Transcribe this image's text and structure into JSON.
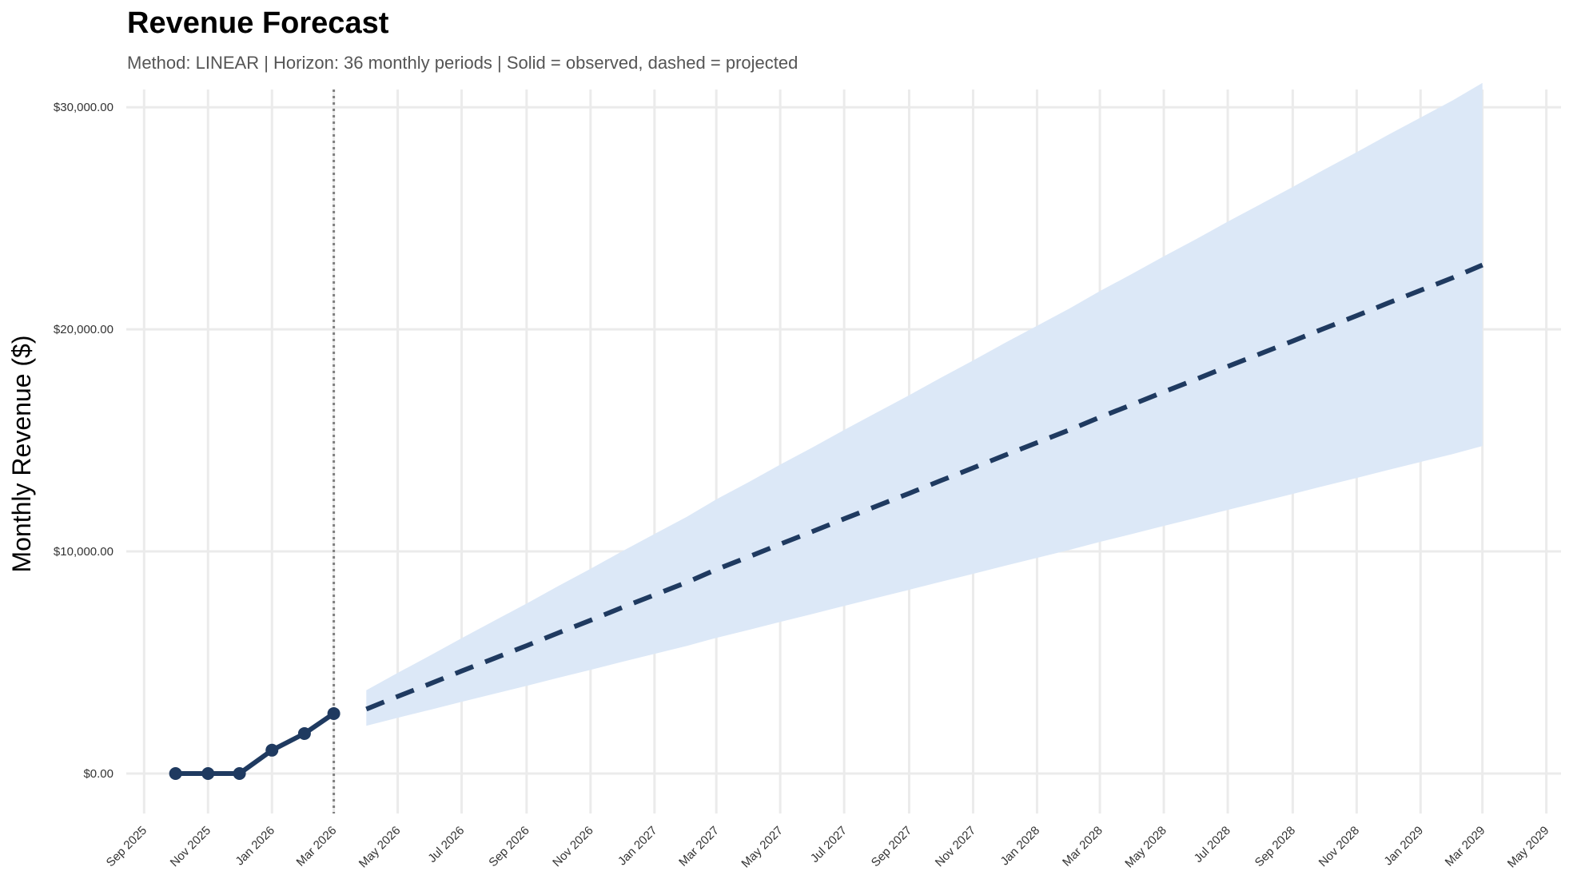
{
  "chart_data": {
    "type": "line",
    "title": "Revenue Forecast",
    "subtitle": "Method: LINEAR | Horizon: 36 monthly periods | Solid = observed, dashed = projected",
    "xlabel": "",
    "ylabel": "Monthly Revenue ($)",
    "ylim": [
      -1800,
      30800
    ],
    "xlim": [
      "2025-08-15",
      "2029-05-15"
    ],
    "grid": true,
    "legend": "none",
    "colors": {
      "line": "#1f3a60",
      "band": "#dce8f7",
      "grid": "#ebebeb",
      "cutoff": "#808080"
    },
    "y_ticks": [
      {
        "value": 0,
        "label": "$0.00"
      },
      {
        "value": 10000,
        "label": "$10,000.00"
      },
      {
        "value": 20000,
        "label": "$20,000.00"
      },
      {
        "value": 30000,
        "label": "$30,000.00"
      }
    ],
    "x_ticks": [
      {
        "date": "2025-09-01",
        "label": "Sep 2025"
      },
      {
        "date": "2025-11-01",
        "label": "Nov 2025"
      },
      {
        "date": "2026-01-01",
        "label": "Jan 2026"
      },
      {
        "date": "2026-03-01",
        "label": "Mar 2026"
      },
      {
        "date": "2026-05-01",
        "label": "May 2026"
      },
      {
        "date": "2026-07-01",
        "label": "Jul 2026"
      },
      {
        "date": "2026-09-01",
        "label": "Sep 2026"
      },
      {
        "date": "2026-11-01",
        "label": "Nov 2026"
      },
      {
        "date": "2027-01-01",
        "label": "Jan 2027"
      },
      {
        "date": "2027-03-01",
        "label": "Mar 2027"
      },
      {
        "date": "2027-05-01",
        "label": "May 2027"
      },
      {
        "date": "2027-07-01",
        "label": "Jul 2027"
      },
      {
        "date": "2027-09-01",
        "label": "Sep 2027"
      },
      {
        "date": "2027-11-01",
        "label": "Nov 2027"
      },
      {
        "date": "2028-01-01",
        "label": "Jan 2028"
      },
      {
        "date": "2028-03-01",
        "label": "Mar 2028"
      },
      {
        "date": "2028-05-01",
        "label": "May 2028"
      },
      {
        "date": "2028-07-01",
        "label": "Jul 2028"
      },
      {
        "date": "2028-09-01",
        "label": "Sep 2028"
      },
      {
        "date": "2028-11-01",
        "label": "Nov 2028"
      },
      {
        "date": "2029-01-01",
        "label": "Jan 2029"
      },
      {
        "date": "2029-03-01",
        "label": "Mar 2029"
      },
      {
        "date": "2029-05-01",
        "label": "May 2029"
      }
    ],
    "cutoff_date": "2026-03-01",
    "observed": {
      "x": [
        "2025-10-01",
        "2025-11-01",
        "2025-12-01",
        "2026-01-01",
        "2026-02-01",
        "2026-03-01"
      ],
      "y": [
        0,
        0,
        0,
        1050,
        1800,
        2700
      ]
    },
    "projected": {
      "x_start": "2026-04-01",
      "periods": 36,
      "y_start": 2900,
      "y_end": 22900,
      "lower_start": 2150,
      "lower_end": 14750,
      "upper_start": 3750,
      "upper_end": 31100
    }
  }
}
